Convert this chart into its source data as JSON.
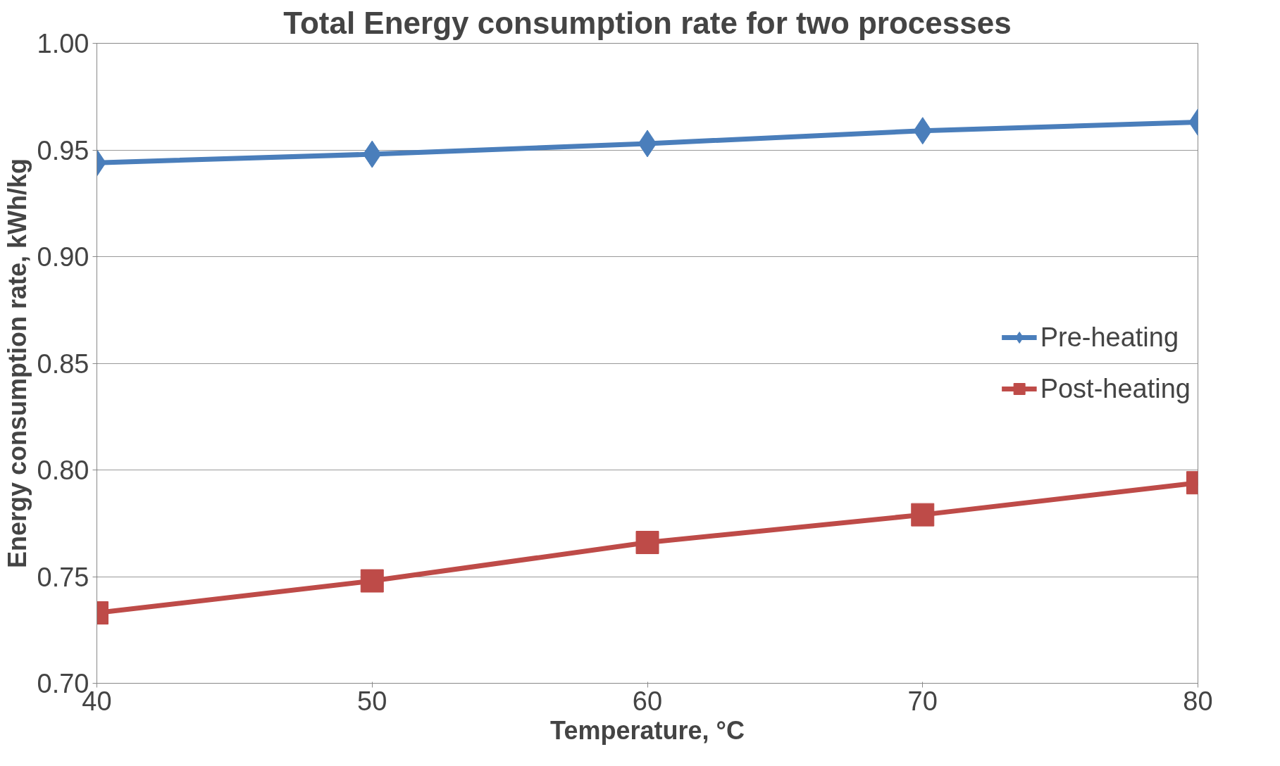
{
  "chart_data": {
    "type": "line",
    "title": "Total Energy consumption rate for two processes",
    "xlabel": "Temperature, °C",
    "ylabel": "Energy consumption rate, kWh/kg",
    "x": [
      40,
      50,
      60,
      70,
      80
    ],
    "series": [
      {
        "name": "Pre-heating",
        "color": "#4a7ebb",
        "marker": "diamond",
        "values": [
          0.944,
          0.948,
          0.953,
          0.959,
          0.963
        ]
      },
      {
        "name": "Post-heating",
        "color": "#be4b48",
        "marker": "square",
        "values": [
          0.733,
          0.748,
          0.766,
          0.779,
          0.794
        ]
      }
    ],
    "xlim": [
      40,
      80
    ],
    "xticks": [
      40,
      50,
      60,
      70,
      80
    ],
    "ylim": [
      0.7,
      1.0
    ],
    "yticks": [
      {
        "value": 0.7,
        "label": "0.70"
      },
      {
        "value": 0.75,
        "label": "0.75"
      },
      {
        "value": 0.8,
        "label": "0.80"
      },
      {
        "value": 0.85,
        "label": "0.85"
      },
      {
        "value": 0.9,
        "label": "0.90"
      },
      {
        "value": 0.95,
        "label": "0.95"
      },
      {
        "value": 1.0,
        "label": "1.00"
      }
    ],
    "grid": "y",
    "legend": "right",
    "line_style": "solid"
  }
}
